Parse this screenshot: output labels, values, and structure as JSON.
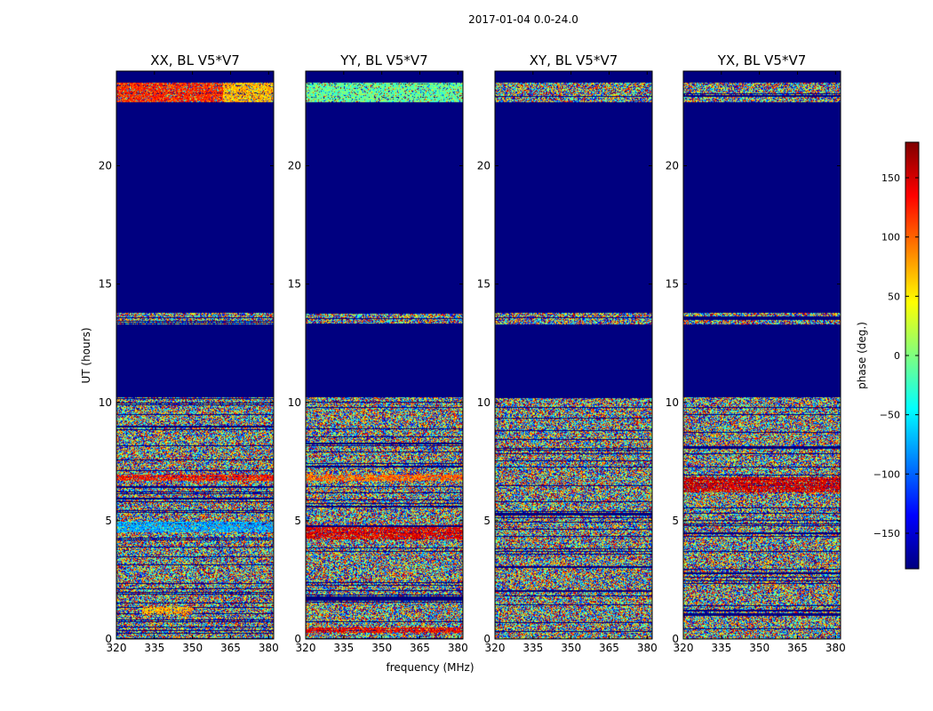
{
  "chart_data": {
    "type": "heatmap",
    "title": "2017-01-04 0.0-24.0",
    "xlabel": "frequency (MHz)",
    "ylabel": "UT (hours)",
    "xlim": [
      320,
      382
    ],
    "ylim": [
      0,
      24
    ],
    "xticks": [
      320,
      335,
      350,
      365,
      380
    ],
    "yticks": [
      0,
      5,
      10,
      15,
      20
    ],
    "colorbar": {
      "label": "phase (deg.)",
      "range": [
        -180,
        180
      ],
      "ticks": [
        -150,
        -100,
        -50,
        0,
        50,
        100,
        150
      ],
      "colormap": [
        "#00007f",
        "#0000ff",
        "#007fff",
        "#00ffff",
        "#7fff7f",
        "#ffff00",
        "#ff7f00",
        "#ff0000",
        "#7f0000"
      ]
    },
    "no_data_color": "#000080",
    "data_bands_ut": [
      [
        0.0,
        2.7
      ],
      [
        2.7,
        4.1
      ],
      [
        4.1,
        10.2
      ],
      [
        13.3,
        13.8
      ],
      [
        22.7,
        23.5
      ]
    ],
    "panels": [
      {
        "title": "XX, BL V5*V7",
        "features": [
          {
            "ut": [
              22.7,
              23.5
            ],
            "freq": [
              320,
              362
            ],
            "phase": 120
          },
          {
            "ut": [
              22.7,
              23.5
            ],
            "freq": [
              362,
              382
            ],
            "phase": 70
          },
          {
            "ut": [
              6.7,
              6.95
            ],
            "freq": [
              320,
              382
            ],
            "phase": 130
          },
          {
            "ut": [
              4.5,
              4.95
            ],
            "freq": [
              320,
              382
            ],
            "phase": -75
          },
          {
            "ut": [
              1.05,
              1.35
            ],
            "freq": [
              330,
              350
            ],
            "phase": 75
          }
        ]
      },
      {
        "title": "YY, BL V5*V7",
        "features": [
          {
            "ut": [
              22.7,
              23.5
            ],
            "freq": [
              320,
              382
            ],
            "phase": -10
          },
          {
            "ut": [
              6.7,
              6.95
            ],
            "freq": [
              320,
              382
            ],
            "phase": 100
          },
          {
            "ut": [
              4.2,
              4.75
            ],
            "freq": [
              320,
              382
            ],
            "phase": 145
          },
          {
            "ut": [
              0.25,
              0.5
            ],
            "freq": [
              320,
              382
            ],
            "phase": 140
          }
        ]
      },
      {
        "title": "XY, BL V5*V7",
        "features": []
      },
      {
        "title": "YX, BL V5*V7",
        "features": [
          {
            "ut": [
              6.2,
              6.85
            ],
            "freq": [
              320,
              382
            ],
            "phase": 150
          }
        ]
      }
    ]
  }
}
